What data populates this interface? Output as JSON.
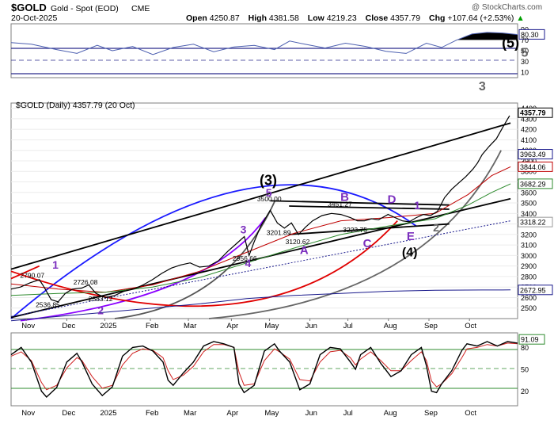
{
  "header": {
    "ticker": "$GOLD",
    "name": "Gold - Spot (EOD)",
    "exchange": "CME",
    "date": "20-Oct-2025",
    "watermark": "@ StockCharts.com",
    "open_label": "Open",
    "open": "4250.87",
    "high_label": "High",
    "high": "4381.58",
    "low_label": "Low",
    "low": "4219.23",
    "close_label": "Close",
    "close": "4357.79",
    "chg_label": "Chg",
    "chg": "+107.64 (+2.53%)",
    "chg_marker": "▲"
  },
  "rsi_top": {
    "ticks": [
      "90",
      "80.30",
      "70",
      "50",
      "30",
      "10"
    ],
    "series_path": [
      [
        0,
        65
      ],
      [
        4,
        62
      ],
      [
        9,
        52
      ],
      [
        13,
        45
      ],
      [
        17,
        60
      ],
      [
        20,
        50
      ],
      [
        24,
        58
      ],
      [
        28,
        43
      ],
      [
        32,
        56
      ],
      [
        36,
        62
      ],
      [
        40,
        48
      ],
      [
        44,
        57
      ],
      [
        48,
        60
      ],
      [
        52,
        52
      ],
      [
        55,
        68
      ],
      [
        58,
        62
      ],
      [
        62,
        55
      ],
      [
        66,
        64
      ],
      [
        70,
        58
      ],
      [
        74,
        49
      ],
      [
        78,
        45
      ],
      [
        82,
        64
      ],
      [
        85,
        56
      ],
      [
        88,
        70
      ],
      [
        91,
        81
      ],
      [
        94,
        84
      ],
      [
        97,
        83
      ],
      [
        100,
        80
      ]
    ],
    "colors": {
      "line": "#4c5fb0",
      "fill": "#000000",
      "band": "#2b2b8c"
    }
  },
  "main": {
    "title": "$GOLD (Daily) 4357.79 (20 Oct)",
    "last_price": "4357.79",
    "price_labels": [
      {
        "value": 4357.79,
        "text": "4357.79",
        "style": "last"
      },
      {
        "value": 3963.49,
        "text": "3963.49",
        "style": "navy"
      },
      {
        "value": 3844.06,
        "text": "3844.06",
        "style": "red"
      },
      {
        "value": 3682.29,
        "text": "3682.29",
        "style": "green"
      },
      {
        "value": 3318.22,
        "text": "3318.22",
        "style": "plain"
      },
      {
        "value": 2672.95,
        "text": "2672.95",
        "style": "navy"
      }
    ],
    "wave_labels": [
      {
        "text": "(3)",
        "x": 0.546,
        "y": 3670,
        "color": "#000000",
        "size": 18
      },
      {
        "text": "(4)",
        "x": 0.846,
        "y": 2990,
        "color": "#000000",
        "size": 16
      },
      {
        "text": "(5)",
        "x": 1.06,
        "y": 5060,
        "color": "#000000",
        "size": 18
      },
      {
        "text": "5",
        "x": 1.09,
        "y": 4890,
        "color": "#666666",
        "size": 16
      },
      {
        "text": "3",
        "x": 1.0,
        "y": 4570,
        "color": "#666666",
        "size": 16
      },
      {
        "text": "1",
        "x": 0.094,
        "y": 2875,
        "color": "#7b2fbe",
        "size": 14
      },
      {
        "text": "2",
        "x": 0.19,
        "y": 2440,
        "color": "#7b2fbe",
        "size": 14
      },
      {
        "text": "3",
        "x": 0.493,
        "y": 3210,
        "color": "#7b2fbe",
        "size": 14
      },
      {
        "text": "4",
        "x": 0.503,
        "y": 2890,
        "color": "#7b2fbe",
        "size": 14
      },
      {
        "text": "5",
        "x": 0.547,
        "y": 3560,
        "color": "#7b2fbe",
        "size": 14
      },
      {
        "text": "1",
        "x": 0.862,
        "y": 3440,
        "color": "#7b2fbe",
        "size": 14
      },
      {
        "text": "2",
        "x": 0.902,
        "y": 3230,
        "color": "#666666",
        "size": 14
      },
      {
        "text": "A",
        "x": 0.622,
        "y": 3015,
        "color": "#7b2fbe",
        "size": 15
      },
      {
        "text": "B",
        "x": 0.708,
        "y": 3520,
        "color": "#7b2fbe",
        "size": 15
      },
      {
        "text": "C",
        "x": 0.756,
        "y": 3080,
        "color": "#7b2fbe",
        "size": 15
      },
      {
        "text": "D",
        "x": 0.808,
        "y": 3495,
        "color": "#7b2fbe",
        "size": 15
      },
      {
        "text": "E",
        "x": 0.848,
        "y": 3145,
        "color": "#7b2fbe",
        "size": 15
      }
    ],
    "annotations": [
      {
        "text": "2790.07",
        "x": 0.045,
        "y": 2790
      },
      {
        "text": "2726.08",
        "x": 0.158,
        "y": 2723
      },
      {
        "text": "2536.85",
        "x": 0.078,
        "y": 2510
      },
      {
        "text": "2583.12",
        "x": 0.19,
        "y": 2565
      },
      {
        "text": "2956.66",
        "x": 0.496,
        "y": 2950
      },
      {
        "text": "3500.00",
        "x": 0.548,
        "y": 3515
      },
      {
        "text": "3451.27",
        "x": 0.698,
        "y": 3465
      },
      {
        "text": "3201.89",
        "x": 0.568,
        "y": 3195
      },
      {
        "text": "3120.62",
        "x": 0.608,
        "y": 3110
      },
      {
        "text": "3223.75",
        "x": 0.73,
        "y": 3220
      }
    ],
    "price_axis": [
      2500,
      2600,
      2700,
      2800,
      2900,
      3000,
      3100,
      3200,
      3300,
      3400,
      3500,
      3600,
      3700,
      3800,
      3900,
      4000,
      4100,
      4200,
      4300,
      4400
    ],
    "date_axis": [
      "Nov",
      "Dec",
      "2025",
      "Feb",
      "Mar",
      "Apr",
      "May",
      "Jun",
      "Jul",
      "Aug",
      "Sep",
      "Oct"
    ]
  },
  "chart_data": {
    "type": "line",
    "title": "$GOLD (Daily) 4357.79 (20 Oct)",
    "ylim": [
      2400,
      4450
    ],
    "x_range": [
      "Oct-2024",
      "Oct-2025"
    ],
    "price_series": [
      [
        0.0,
        2680
      ],
      [
        0.02,
        2700
      ],
      [
        0.04,
        2740
      ],
      [
        0.06,
        2770
      ],
      [
        0.07,
        2700
      ],
      [
        0.085,
        2580
      ],
      [
        0.1,
        2560
      ],
      [
        0.115,
        2640
      ],
      [
        0.13,
        2680
      ],
      [
        0.15,
        2690
      ],
      [
        0.165,
        2720
      ],
      [
        0.18,
        2640
      ],
      [
        0.2,
        2600
      ],
      [
        0.22,
        2620
      ],
      [
        0.24,
        2660
      ],
      [
        0.26,
        2680
      ],
      [
        0.28,
        2720
      ],
      [
        0.3,
        2770
      ],
      [
        0.32,
        2830
      ],
      [
        0.34,
        2880
      ],
      [
        0.36,
        2910
      ],
      [
        0.38,
        2930
      ],
      [
        0.4,
        2890
      ],
      [
        0.42,
        2900
      ],
      [
        0.44,
        2950
      ],
      [
        0.46,
        3040
      ],
      [
        0.48,
        3120
      ],
      [
        0.495,
        3180
      ],
      [
        0.505,
        3000
      ],
      [
        0.515,
        3120
      ],
      [
        0.53,
        3280
      ],
      [
        0.55,
        3430
      ],
      [
        0.565,
        3310
      ],
      [
        0.58,
        3260
      ],
      [
        0.595,
        3310
      ],
      [
        0.61,
        3200
      ],
      [
        0.625,
        3270
      ],
      [
        0.64,
        3330
      ],
      [
        0.66,
        3380
      ],
      [
        0.68,
        3400
      ],
      [
        0.7,
        3390
      ],
      [
        0.72,
        3360
      ],
      [
        0.735,
        3330
      ],
      [
        0.75,
        3330
      ],
      [
        0.765,
        3350
      ],
      [
        0.78,
        3340
      ],
      [
        0.8,
        3390
      ],
      [
        0.815,
        3360
      ],
      [
        0.83,
        3330
      ],
      [
        0.845,
        3320
      ],
      [
        0.86,
        3360
      ],
      [
        0.875,
        3390
      ],
      [
        0.89,
        3380
      ],
      [
        0.905,
        3420
      ],
      [
        0.92,
        3550
      ],
      [
        0.935,
        3630
      ],
      [
        0.95,
        3690
      ],
      [
        0.965,
        3750
      ],
      [
        0.98,
        3820
      ],
      [
        0.99,
        3880
      ],
      [
        1.0,
        3960
      ],
      [
        1.015,
        4040
      ],
      [
        1.03,
        4110
      ],
      [
        1.045,
        4230
      ],
      [
        1.058,
        4330
      ]
    ],
    "series": [
      {
        "name": "",
        "color": "#c00000",
        "values": [
          [
            0.0,
            2730
          ],
          [
            0.1,
            2680
          ],
          [
            0.2,
            2650
          ],
          [
            0.3,
            2720
          ],
          [
            0.4,
            2850
          ],
          [
            0.5,
            3030
          ],
          [
            0.6,
            3210
          ],
          [
            0.7,
            3330
          ],
          [
            0.8,
            3360
          ],
          [
            0.9,
            3400
          ],
          [
            0.97,
            3580
          ],
          [
            1.02,
            3760
          ],
          [
            1.06,
            3844
          ]
        ]
      },
      {
        "name": "",
        "color": "#2e8b2e",
        "values": [
          [
            0.0,
            2620
          ],
          [
            0.1,
            2640
          ],
          [
            0.2,
            2650
          ],
          [
            0.3,
            2700
          ],
          [
            0.4,
            2790
          ],
          [
            0.5,
            2930
          ],
          [
            0.6,
            3070
          ],
          [
            0.7,
            3200
          ],
          [
            0.8,
            3280
          ],
          [
            0.9,
            3350
          ],
          [
            0.97,
            3480
          ],
          [
            1.02,
            3600
          ],
          [
            1.06,
            3682
          ]
        ]
      },
      {
        "name": "",
        "color": "#1a1a8c",
        "values": [
          [
            0.0,
            2380
          ],
          [
            0.1,
            2420
          ],
          [
            0.2,
            2460
          ],
          [
            0.3,
            2500
          ],
          [
            0.4,
            2540
          ],
          [
            0.5,
            2590
          ],
          [
            0.6,
            2620
          ],
          [
            0.7,
            2640
          ],
          [
            0.8,
            2660
          ],
          [
            0.9,
            2670
          ],
          [
            1.0,
            2672
          ],
          [
            1.06,
            2673
          ]
        ]
      }
    ],
    "curved_lines": [
      {
        "color": "#1a1aff",
        "from": [
          0.0,
          2400
        ],
        "control": [
          0.52,
          4380
        ],
        "to": [
          0.86,
          3280
        ]
      },
      {
        "color": "#8b00ff",
        "from": [
          0.02,
          2380
        ],
        "control": [
          0.42,
          2600
        ],
        "to": [
          0.54,
          3360
        ]
      },
      {
        "color": "#555555",
        "from": [
          0.22,
          2400
        ],
        "control": [
          0.46,
          2530
        ],
        "to": [
          0.56,
          3520
        ]
      },
      {
        "color": "#e00000",
        "from": [
          0.0,
          2850
        ],
        "control": [
          0.55,
          2000
        ],
        "to": [
          0.82,
          3330
        ]
      },
      {
        "color": "#666666",
        "from": [
          0.42,
          2400
        ],
        "control": [
          0.88,
          2580
        ],
        "to": [
          1.04,
          4000
        ]
      },
      {
        "color": "#e00000",
        "from": [
          0.0,
          2780
        ],
        "control": [
          0.0,
          2780
        ],
        "to": [
          0.06,
          2900
        ]
      }
    ],
    "straight_lines": [
      {
        "color": "#000000",
        "from": [
          0.0,
          2870
        ],
        "to": [
          1.06,
          4260
        ]
      },
      {
        "color": "#000000",
        "from": [
          0.0,
          2410
        ],
        "to": [
          1.06,
          3540
        ]
      },
      {
        "color": "#000000",
        "from": [
          0.59,
          3470
        ],
        "to": [
          0.93,
          3440
        ]
      },
      {
        "color": "#000000",
        "from": [
          0.59,
          3200
        ],
        "to": [
          0.93,
          3300
        ]
      },
      {
        "color": "#000000",
        "from": [
          0.55,
          3520
        ],
        "to": [
          0.93,
          3480
        ]
      },
      {
        "color": "#1a1a8c",
        "dash": true,
        "from": [
          0.0,
          2420
        ],
        "to": [
          1.06,
          3330
        ]
      }
    ]
  },
  "rsi_bottom": {
    "ticks": [
      "91.09",
      "80",
      "50",
      "20"
    ],
    "last": "91.09",
    "date_axis": [
      "Nov",
      "Dec",
      "2025",
      "Feb",
      "Mar",
      "Apr",
      "May",
      "Jun",
      "Jul",
      "Aug",
      "Sep",
      "Oct"
    ],
    "black_line": [
      [
        0,
        70
      ],
      [
        2,
        80
      ],
      [
        4,
        60
      ],
      [
        6,
        20
      ],
      [
        7,
        12
      ],
      [
        9,
        25
      ],
      [
        11,
        60
      ],
      [
        13,
        72
      ],
      [
        14,
        60
      ],
      [
        16,
        30
      ],
      [
        18,
        14
      ],
      [
        20,
        26
      ],
      [
        22,
        68
      ],
      [
        24,
        80
      ],
      [
        26,
        82
      ],
      [
        28,
        75
      ],
      [
        30,
        60
      ],
      [
        31,
        35
      ],
      [
        32,
        28
      ],
      [
        34,
        45
      ],
      [
        36,
        60
      ],
      [
        38,
        82
      ],
      [
        40,
        88
      ],
      [
        42,
        85
      ],
      [
        44,
        80
      ],
      [
        45,
        30
      ],
      [
        46,
        18
      ],
      [
        48,
        28
      ],
      [
        50,
        75
      ],
      [
        52,
        85
      ],
      [
        53,
        75
      ],
      [
        55,
        60
      ],
      [
        57,
        22
      ],
      [
        59,
        30
      ],
      [
        61,
        70
      ],
      [
        63,
        80
      ],
      [
        65,
        78
      ],
      [
        67,
        60
      ],
      [
        68,
        50
      ],
      [
        69,
        70
      ],
      [
        71,
        80
      ],
      [
        73,
        58
      ],
      [
        75,
        40
      ],
      [
        77,
        48
      ],
      [
        79,
        70
      ],
      [
        81,
        80
      ],
      [
        82,
        55
      ],
      [
        83,
        20
      ],
      [
        84,
        18
      ],
      [
        85,
        30
      ],
      [
        87,
        48
      ],
      [
        89,
        76
      ],
      [
        90,
        85
      ],
      [
        92,
        82
      ],
      [
        94,
        88
      ],
      [
        96,
        82
      ],
      [
        98,
        88
      ],
      [
        100,
        86
      ]
    ],
    "red_line": [
      [
        0,
        68
      ],
      [
        2,
        74
      ],
      [
        4,
        62
      ],
      [
        6,
        32
      ],
      [
        7,
        22
      ],
      [
        9,
        28
      ],
      [
        11,
        52
      ],
      [
        13,
        66
      ],
      [
        14,
        62
      ],
      [
        16,
        40
      ],
      [
        18,
        24
      ],
      [
        20,
        28
      ],
      [
        22,
        56
      ],
      [
        24,
        72
      ],
      [
        26,
        78
      ],
      [
        28,
        76
      ],
      [
        30,
        66
      ],
      [
        31,
        48
      ],
      [
        32,
        36
      ],
      [
        34,
        42
      ],
      [
        36,
        54
      ],
      [
        38,
        74
      ],
      [
        40,
        84
      ],
      [
        42,
        84
      ],
      [
        44,
        80
      ],
      [
        45,
        46
      ],
      [
        46,
        28
      ],
      [
        48,
        30
      ],
      [
        50,
        62
      ],
      [
        52,
        78
      ],
      [
        53,
        74
      ],
      [
        55,
        64
      ],
      [
        57,
        36
      ],
      [
        59,
        34
      ],
      [
        61,
        60
      ],
      [
        63,
        74
      ],
      [
        65,
        76
      ],
      [
        67,
        66
      ],
      [
        68,
        56
      ],
      [
        69,
        64
      ],
      [
        71,
        74
      ],
      [
        73,
        62
      ],
      [
        75,
        48
      ],
      [
        77,
        48
      ],
      [
        79,
        62
      ],
      [
        81,
        74
      ],
      [
        82,
        62
      ],
      [
        83,
        34
      ],
      [
        84,
        26
      ],
      [
        85,
        30
      ],
      [
        87,
        44
      ],
      [
        89,
        66
      ],
      [
        90,
        78
      ],
      [
        92,
        80
      ],
      [
        94,
        84
      ],
      [
        96,
        82
      ],
      [
        98,
        86
      ],
      [
        100,
        85
      ]
    ]
  }
}
